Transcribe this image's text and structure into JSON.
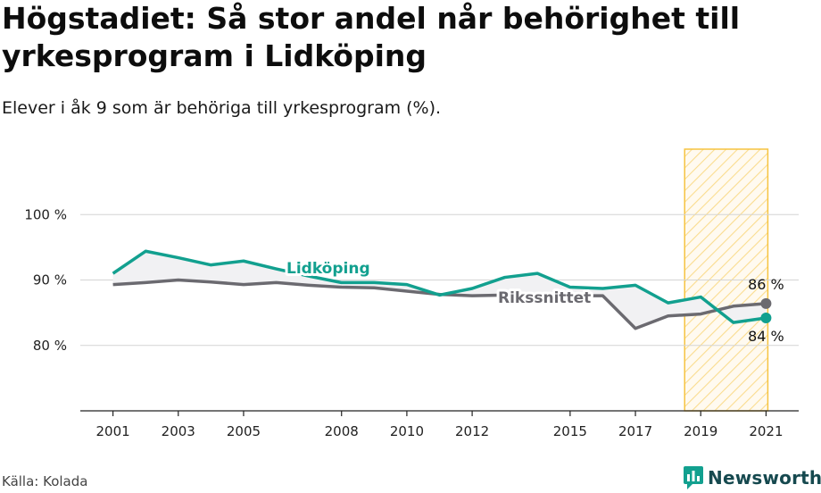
{
  "header": {
    "title": "Högstadiet: Så stor andel når behörighet till yrkesprogram i Lidköping",
    "subtitle": "Elever i åk 9 som är behöriga till yrkesprogram (%)."
  },
  "footer": {
    "source": "Källa: Kolada",
    "brand": "Newsworthy",
    "brand_icon": "bar-chart-speech-icon"
  },
  "colors": {
    "lidkoping": "#12a08f",
    "riket": "#6b6a70",
    "fill": "#f1f1f3",
    "highlight": "#f6c340",
    "brand": "#16494f"
  },
  "chart_data": {
    "type": "line",
    "x": [
      2001,
      2002,
      2003,
      2004,
      2005,
      2006,
      2007,
      2008,
      2009,
      2010,
      2011,
      2012,
      2013,
      2014,
      2015,
      2016,
      2017,
      2018,
      2019,
      2020,
      2021
    ],
    "xticks": [
      2001,
      2003,
      2005,
      2008,
      2010,
      2012,
      2015,
      2017,
      2019,
      2021
    ],
    "yticks": [
      {
        "value": 80,
        "label": "80 %"
      },
      {
        "value": 90,
        "label": "90 %"
      },
      {
        "value": 100,
        "label": "100 %"
      }
    ],
    "ylim": [
      70,
      110
    ],
    "xlim": [
      2000,
      2022
    ],
    "grid": "horizontal",
    "series": [
      {
        "name": "Lidköping",
        "key": "lidkoping",
        "values": [
          91.0,
          94.4,
          93.4,
          92.3,
          92.9,
          91.7,
          90.6,
          89.6,
          89.6,
          89.3,
          87.7,
          88.7,
          90.4,
          91.0,
          88.9,
          88.7,
          89.2,
          86.5,
          87.4,
          83.5,
          84.2
        ],
        "end_label": "84 %"
      },
      {
        "name": "Rikssnittet",
        "key": "riket",
        "values": [
          89.3,
          89.6,
          90.0,
          89.7,
          89.3,
          89.6,
          89.2,
          88.9,
          88.8,
          88.3,
          87.8,
          87.6,
          87.7,
          87.6,
          87.6,
          87.6,
          82.6,
          84.5,
          84.8,
          86.0,
          86.4
        ],
        "end_label": "86 %"
      }
    ],
    "highlight_range": [
      2019,
      2021
    ]
  }
}
